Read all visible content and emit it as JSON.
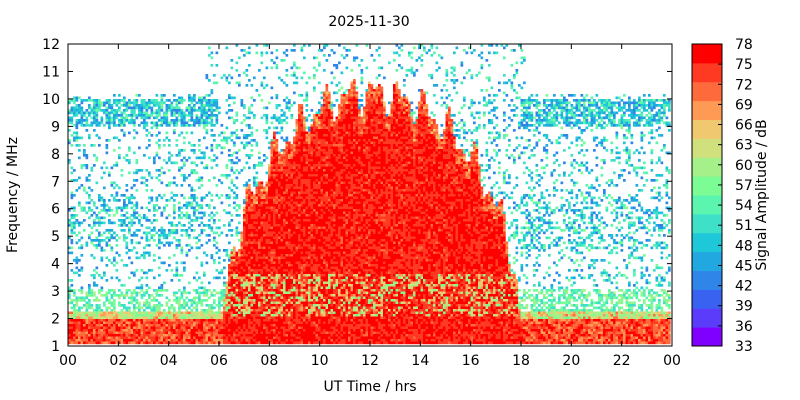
{
  "chart_data": {
    "type": "heatmap",
    "title": "2025-11-30",
    "xlabel": "UT Time / hrs",
    "ylabel": "Frequency / MHz",
    "colorbar_label": "Signal Amplitude / dB",
    "xlim": [
      0,
      24
    ],
    "ylim": [
      1,
      12
    ],
    "x_ticks": [
      "00",
      "02",
      "04",
      "06",
      "08",
      "10",
      "12",
      "14",
      "16",
      "18",
      "20",
      "22",
      "00"
    ],
    "y_ticks": [
      "1",
      "2",
      "3",
      "4",
      "5",
      "6",
      "7",
      "8",
      "9",
      "10",
      "11",
      "12"
    ],
    "colorbar_ticks": [
      "33",
      "36",
      "39",
      "42",
      "45",
      "48",
      "51",
      "54",
      "57",
      "60",
      "63",
      "66",
      "69",
      "72",
      "75",
      "78"
    ],
    "colorbar_range": [
      33,
      78
    ],
    "colormap": [
      "#8000ff",
      "#5a3cfa",
      "#3a62f0",
      "#2f86e8",
      "#22a8e0",
      "#1fc8d9",
      "#3ee0c7",
      "#5cf5b0",
      "#7cfc94",
      "#a6f08a",
      "#cfe07c",
      "#f0c870",
      "#ff9a55",
      "#ff6a3c",
      "#ff3a22",
      "#ff0000"
    ],
    "grid": false,
    "features": {
      "daytime_absorption_start_hours": 6.2,
      "daytime_absorption_end_hours": 18.0,
      "daytime_max_frequency_mhz": 10.6,
      "background_band_mhz": [
        9.0,
        10.0
      ],
      "low_band_mhz": [
        1.0,
        2.2
      ]
    }
  }
}
